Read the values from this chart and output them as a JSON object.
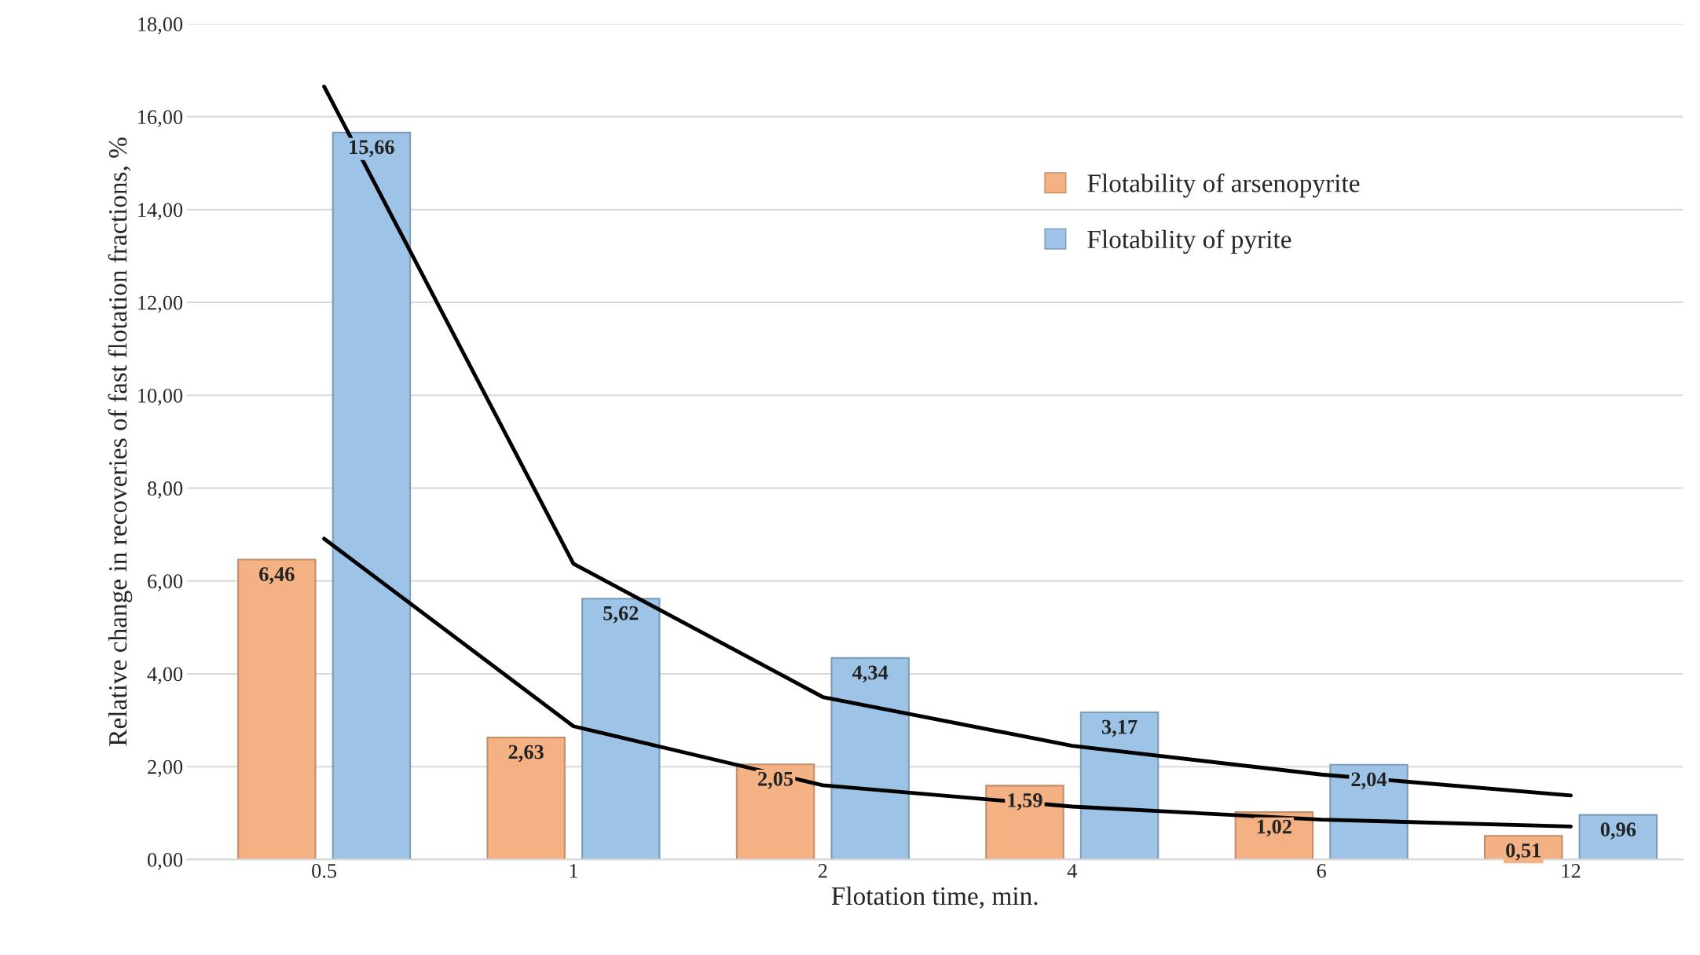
{
  "chart_data": {
    "type": "bar",
    "xlabel": "Flotation time, min.",
    "ylabel": "Relative change in recoveries of fast flotation fractions, %",
    "categories": [
      "0.5",
      "1",
      "2",
      "4",
      "6",
      "12"
    ],
    "series": [
      {
        "name": "Flotability of arsenopyrite",
        "color": "#f4b183",
        "values": [
          6.46,
          2.63,
          2.05,
          1.59,
          1.02,
          0.51
        ],
        "value_labels": [
          "6,46",
          "2,63",
          "2,05",
          "1,59",
          "1,02",
          "0,51"
        ]
      },
      {
        "name": "Flotability of pyrite",
        "color": "#9dc3e6",
        "values": [
          15.66,
          5.62,
          4.34,
          3.17,
          2.04,
          0.96
        ],
        "value_labels": [
          "15,66",
          "5,62",
          "4,34",
          "3,17",
          "2,04",
          "0,96"
        ]
      },
      {
        "type": "line",
        "color": "#000000",
        "x": [
          "0.5",
          "1",
          "2",
          "4",
          "6",
          "12"
        ],
        "values": [
          16.65,
          6.37,
          3.5,
          2.45,
          1.83,
          1.38
        ]
      },
      {
        "type": "line",
        "color": "#000000",
        "x": [
          "0.5",
          "1",
          "2",
          "4",
          "6",
          "12"
        ],
        "values": [
          6.91,
          2.87,
          1.6,
          1.14,
          0.86,
          0.71
        ]
      }
    ],
    "ylim": [
      0,
      18
    ],
    "yticks": [
      {
        "value": 0,
        "label": "0,00"
      },
      {
        "value": 2,
        "label": "2,00"
      },
      {
        "value": 4,
        "label": "4,00"
      },
      {
        "value": 6,
        "label": "6,00"
      },
      {
        "value": 8,
        "label": "8,00"
      },
      {
        "value": 10,
        "label": "10,00"
      },
      {
        "value": 12,
        "label": "12,00"
      },
      {
        "value": 14,
        "label": "14,00"
      },
      {
        "value": 16,
        "label": "16,00"
      },
      {
        "value": 18,
        "label": "18,00"
      }
    ],
    "grid": "y",
    "legend": "top right"
  }
}
